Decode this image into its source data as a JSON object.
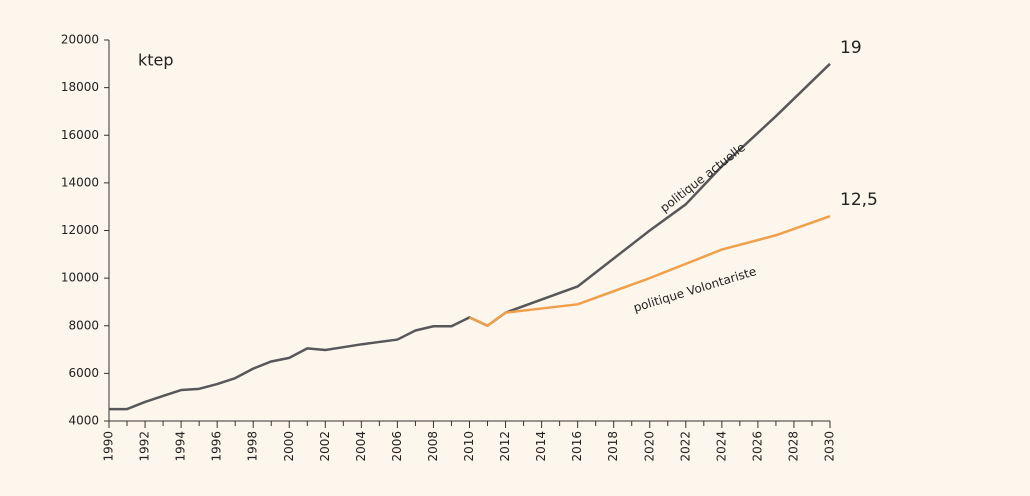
{
  "chart_data": {
    "type": "line",
    "y_label": "ktep",
    "annotations": [
      "19",
      "12,5"
    ],
    "xlim": [
      1990,
      2030
    ],
    "xticks": [
      1990,
      1992,
      1994,
      1996,
      1998,
      2000,
      2002,
      2004,
      2006,
      2008,
      2010,
      2012,
      2014,
      2016,
      2018,
      2020,
      2022,
      2024,
      2026,
      2028,
      2030
    ],
    "ylim": [
      4000,
      20000
    ],
    "yticks": [
      4000,
      6000,
      8000,
      10000,
      12000,
      14000,
      16000,
      18000,
      20000
    ],
    "grid": false,
    "series": [
      {
        "name": "politique actuelle",
        "color": "#58585a",
        "x": [
          1990,
          1991,
          1992,
          1993,
          1994,
          1995,
          1996,
          1997,
          1998,
          1999,
          2000,
          2001,
          2002,
          2003,
          2004,
          2005,
          2006,
          2007,
          2008,
          2009,
          2010,
          2011,
          2012,
          2016,
          2020,
          2022,
          2024,
          2027,
          2030
        ],
        "values": [
          4500,
          4500,
          4800,
          5050,
          5300,
          5350,
          5550,
          5800,
          6200,
          6500,
          6650,
          7050,
          6980,
          7100,
          7220,
          7320,
          7420,
          7800,
          7980,
          7980,
          8350,
          8000,
          8550,
          9650,
          12000,
          13100,
          14700,
          16800,
          19000
        ]
      },
      {
        "name": "politique Volontariste",
        "color": "#f0a04b",
        "x": [
          2010,
          2011,
          2012,
          2016,
          2020,
          2024,
          2027,
          2030
        ],
        "values": [
          8350,
          8000,
          8550,
          8900,
          10000,
          11200,
          11800,
          12600
        ]
      }
    ]
  }
}
